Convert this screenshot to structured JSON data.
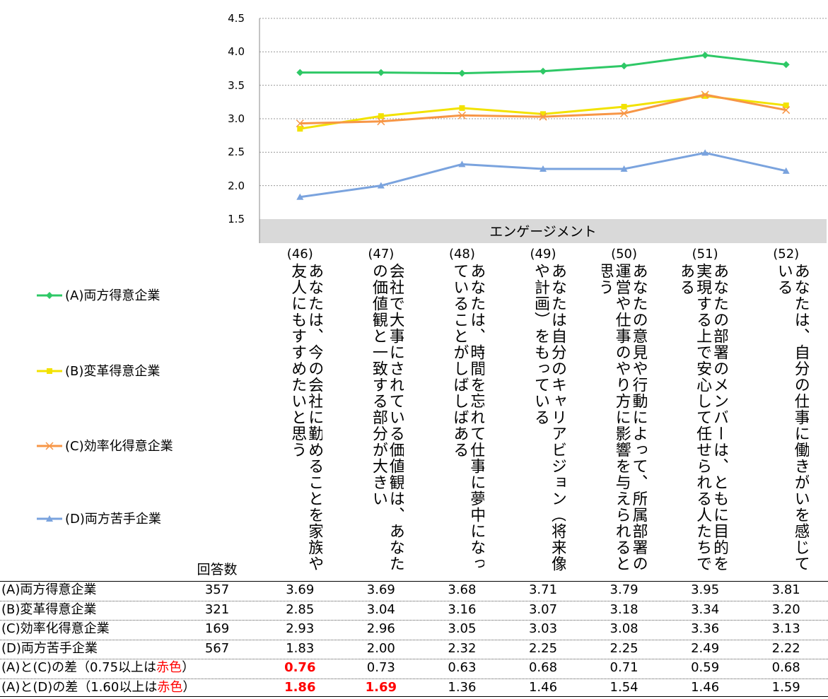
{
  "chart_data": {
    "type": "line",
    "band_label": "エンゲージメント",
    "yticks": [
      "4.5",
      "4.0",
      "3.5",
      "3.0",
      "2.5",
      "2.0",
      "1.5"
    ],
    "ylim": [
      1.5,
      4.5
    ],
    "grid": "horizontal dotted",
    "legend_position": "left",
    "categories": [
      {
        "num": "(46)",
        "text": "あなたは、今の会社に勤めることを家族や友人にもすすめたいと思う"
      },
      {
        "num": "(47)",
        "text": "会社で大事にされている価値観は、あなたの価値観と一致する部分が大きい"
      },
      {
        "num": "(48)",
        "text": "あなたは、時間を忘れて仕事に夢中になっていることがしばしばある"
      },
      {
        "num": "(49)",
        "text": "あなたは自分のキャリアビジョン（将来像や計画）をもっている"
      },
      {
        "num": "(50)",
        "text": "あなたの意見や行動によって、所属部署の運営や仕事のやり方に影響を与えられると思う"
      },
      {
        "num": "(51)",
        "text": "あなたの部署のメンバーは、ともに目的を実現する上で安心して任せられる人たちである"
      },
      {
        "num": "(52)",
        "text": "あなたは、自分の仕事に働きがいを感じている"
      }
    ],
    "series": [
      {
        "name": "(A)両方得意企業",
        "color": "#2ec866",
        "marker": "diamond",
        "values": [
          3.69,
          3.69,
          3.68,
          3.71,
          3.79,
          3.95,
          3.81
        ]
      },
      {
        "name": "(B)変革得意企業",
        "color": "#f2e200",
        "marker": "square",
        "values": [
          2.85,
          3.04,
          3.16,
          3.07,
          3.18,
          3.34,
          3.2
        ]
      },
      {
        "name": "(C)効率化得意企業",
        "color": "#f79646",
        "marker": "x",
        "values": [
          2.93,
          2.96,
          3.05,
          3.03,
          3.08,
          3.36,
          3.13
        ]
      },
      {
        "name": "(D)両方苦手企業",
        "color": "#7aa3de",
        "marker": "triangle",
        "values": [
          1.83,
          2.0,
          2.32,
          2.25,
          2.25,
          2.49,
          2.22
        ]
      }
    ]
  },
  "table": {
    "count_header": "回答数",
    "rows": [
      {
        "label": "(A)両方得意企業",
        "count": "357",
        "values": [
          "3.69",
          "3.69",
          "3.68",
          "3.71",
          "3.79",
          "3.95",
          "3.81"
        ],
        "highlight": []
      },
      {
        "label": "(B)変革得意企業",
        "count": "321",
        "values": [
          "2.85",
          "3.04",
          "3.16",
          "3.07",
          "3.18",
          "3.34",
          "3.20"
        ],
        "highlight": []
      },
      {
        "label": "(C)効率化得意企業",
        "count": "169",
        "values": [
          "2.93",
          "2.96",
          "3.05",
          "3.03",
          "3.08",
          "3.36",
          "3.13"
        ],
        "highlight": []
      },
      {
        "label": "(D)両方苦手企業",
        "count": "567",
        "values": [
          "1.83",
          "2.00",
          "2.32",
          "2.25",
          "2.25",
          "2.49",
          "2.22"
        ],
        "highlight": []
      },
      {
        "label_pre": "(A)と(C)の差（0.75以上は",
        "label_red": "赤色",
        "label_post": "）",
        "count": "",
        "values": [
          "0.76",
          "0.73",
          "0.63",
          "0.68",
          "0.71",
          "0.59",
          "0.68"
        ],
        "highlight": [
          0
        ]
      },
      {
        "label_pre": "(A)と(D)の差（1.60以上は",
        "label_red": "赤色",
        "label_post": "）",
        "count": "",
        "values": [
          "1.86",
          "1.69",
          "1.36",
          "1.46",
          "1.54",
          "1.46",
          "1.59"
        ],
        "highlight": [
          0,
          1
        ]
      }
    ]
  }
}
